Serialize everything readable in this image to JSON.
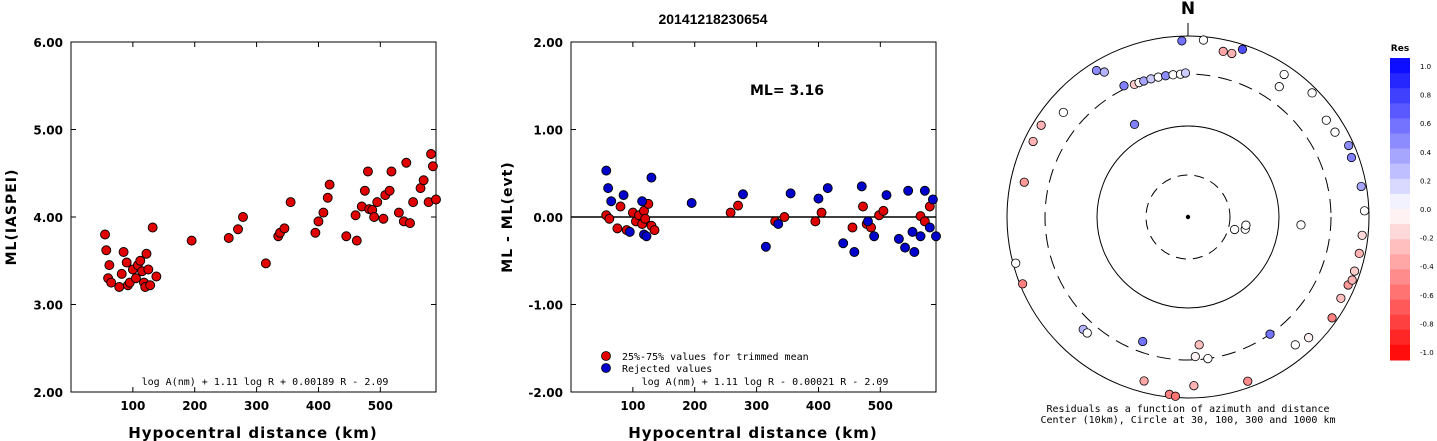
{
  "title": "20141218230654",
  "chart_data": [
    {
      "type": "scatter",
      "ylabel": "ML(IASPEI)",
      "xlabel": "Hypocentral distance (km)",
      "xlim": [
        0,
        590
      ],
      "ylim": [
        2.0,
        6.0
      ],
      "x_ticks": [
        "100",
        "200",
        "300",
        "400",
        "500"
      ],
      "y_ticks": [
        "2.00",
        "3.00",
        "4.00",
        "5.00",
        "6.00"
      ],
      "formula": "log A(nm) + 1.11 log R + 0.00189 R - 2.09",
      "points": [
        [
          55,
          3.8
        ],
        [
          57,
          3.62
        ],
        [
          60,
          3.3
        ],
        [
          62,
          3.45
        ],
        [
          65,
          3.25
        ],
        [
          78,
          3.2
        ],
        [
          82,
          3.35
        ],
        [
          85,
          3.6
        ],
        [
          90,
          3.48
        ],
        [
          92,
          3.22
        ],
        [
          95,
          3.25
        ],
        [
          100,
          3.4
        ],
        [
          105,
          3.3
        ],
        [
          108,
          3.45
        ],
        [
          112,
          3.5
        ],
        [
          115,
          3.38
        ],
        [
          118,
          3.25
        ],
        [
          120,
          3.2
        ],
        [
          122,
          3.58
        ],
        [
          125,
          3.4
        ],
        [
          128,
          3.22
        ],
        [
          132,
          3.88
        ],
        [
          138,
          3.32
        ],
        [
          195,
          3.73
        ],
        [
          255,
          3.76
        ],
        [
          270,
          3.86
        ],
        [
          278,
          4.0
        ],
        [
          315,
          3.47
        ],
        [
          335,
          3.78
        ],
        [
          338,
          3.82
        ],
        [
          345,
          3.87
        ],
        [
          355,
          4.17
        ],
        [
          395,
          3.82
        ],
        [
          400,
          3.95
        ],
        [
          408,
          4.05
        ],
        [
          415,
          4.22
        ],
        [
          418,
          4.37
        ],
        [
          445,
          3.78
        ],
        [
          460,
          4.02
        ],
        [
          462,
          3.73
        ],
        [
          470,
          4.12
        ],
        [
          475,
          4.3
        ],
        [
          480,
          4.52
        ],
        [
          482,
          4.09
        ],
        [
          487,
          4.08
        ],
        [
          490,
          4.0
        ],
        [
          495,
          4.17
        ],
        [
          505,
          3.98
        ],
        [
          508,
          4.25
        ],
        [
          515,
          4.3
        ],
        [
          518,
          4.52
        ],
        [
          530,
          4.05
        ],
        [
          538,
          3.95
        ],
        [
          542,
          4.62
        ],
        [
          548,
          3.93
        ],
        [
          553,
          4.17
        ],
        [
          565,
          4.33
        ],
        [
          570,
          4.42
        ],
        [
          578,
          4.17
        ],
        [
          582,
          4.72
        ],
        [
          585,
          4.58
        ],
        [
          590,
          4.2
        ]
      ]
    },
    {
      "type": "scatter",
      "ylabel": "ML - ML(evt)",
      "xlabel": "Hypocentral distance (km)",
      "xlim": [
        0,
        590
      ],
      "ylim": [
        -2.0,
        2.0
      ],
      "x_ticks": [
        "100",
        "200",
        "300",
        "400",
        "500"
      ],
      "y_ticks": [
        "-2.00",
        "-1.00",
        "0.00",
        "1.00",
        "2.00"
      ],
      "annotation": "ML= 3.16",
      "formula": "log A(nm) + 1.11 log R - 0.00021 R - 2.09",
      "legend": [
        "25%-75% values for trimmed mean",
        "Rejected values"
      ],
      "series": [
        {
          "name": "25%-75% values for trimmed mean",
          "color": "#e00000",
          "points": [
            [
              57,
              0.02
            ],
            [
              62,
              -0.02
            ],
            [
              75,
              -0.13
            ],
            [
              80,
              0.12
            ],
            [
              90,
              -0.15
            ],
            [
              100,
              0.05
            ],
            [
              105,
              -0.05
            ],
            [
              110,
              0.02
            ],
            [
              115,
              -0.08
            ],
            [
              118,
              0.07
            ],
            [
              120,
              -0.02
            ],
            [
              125,
              0.15
            ],
            [
              130,
              -0.1
            ],
            [
              135,
              -0.15
            ],
            [
              258,
              0.05
            ],
            [
              270,
              0.13
            ],
            [
              330,
              -0.05
            ],
            [
              345,
              0.0
            ],
            [
              395,
              -0.05
            ],
            [
              405,
              0.05
            ],
            [
              455,
              -0.12
            ],
            [
              472,
              0.12
            ],
            [
              478,
              -0.08
            ],
            [
              485,
              -0.12
            ],
            [
              498,
              0.02
            ],
            [
              505,
              0.07
            ],
            [
              565,
              0.01
            ],
            [
              572,
              -0.05
            ],
            [
              580,
              0.12
            ]
          ]
        },
        {
          "name": "Rejected values",
          "color": "#0000cc",
          "points": [
            [
              57,
              0.53
            ],
            [
              60,
              0.33
            ],
            [
              65,
              0.18
            ],
            [
              85,
              0.25
            ],
            [
              95,
              -0.17
            ],
            [
              115,
              0.18
            ],
            [
              118,
              -0.2
            ],
            [
              122,
              -0.22
            ],
            [
              130,
              0.45
            ],
            [
              195,
              0.16
            ],
            [
              278,
              0.26
            ],
            [
              315,
              -0.34
            ],
            [
              335,
              -0.08
            ],
            [
              355,
              0.27
            ],
            [
              400,
              0.21
            ],
            [
              415,
              0.33
            ],
            [
              440,
              -0.3
            ],
            [
              458,
              -0.4
            ],
            [
              470,
              0.35
            ],
            [
              480,
              -0.05
            ],
            [
              490,
              -0.22
            ],
            [
              510,
              0.25
            ],
            [
              530,
              -0.25
            ],
            [
              540,
              -0.35
            ],
            [
              545,
              0.3
            ],
            [
              552,
              -0.17
            ],
            [
              555,
              -0.4
            ],
            [
              565,
              -0.22
            ],
            [
              572,
              0.3
            ],
            [
              580,
              -0.12
            ],
            [
              585,
              0.2
            ],
            [
              590,
              -0.22
            ]
          ]
        }
      ]
    },
    {
      "type": "scatter",
      "subtype": "polar residual map",
      "north_label": "N",
      "caption_line1": "Residuals as a function of azimuth and distance",
      "caption_line2": "Center (10km), Circle at 30, 100, 300 and 1000 km",
      "colorbar": {
        "title": "Res",
        "ticks": [
          "1.0",
          "0.8",
          "0.6",
          "0.4",
          "0.2",
          "0.0",
          "-0.2",
          "-0.4",
          "-0.6",
          "-0.8",
          "-1.0"
        ]
      },
      "points": [
        {
          "az": 5,
          "dist": 900,
          "res": 0.0
        },
        {
          "az": -2,
          "dist": 860,
          "res": 0.55
        },
        {
          "az": 18,
          "dist": 860,
          "res": 0.7
        },
        {
          "az": 12,
          "dist": 690,
          "res": -0.35
        },
        {
          "az": 15,
          "dist": 690,
          "res": -0.3
        },
        {
          "az": -32,
          "dist": 770,
          "res": 0.45
        },
        {
          "az": -30,
          "dist": 650,
          "res": 0.3
        },
        {
          "az": 34,
          "dist": 750,
          "res": 0.0
        },
        {
          "az": -26,
          "dist": 330,
          "res": 0.5
        },
        {
          "az": -22,
          "dist": 300,
          "res": -0.2
        },
        {
          "az": -20,
          "dist": 300,
          "res": 0.0
        },
        {
          "az": -18,
          "dist": 300,
          "res": 0.35
        },
        {
          "az": -15,
          "dist": 300,
          "res": 0.2
        },
        {
          "az": -12,
          "dist": 300,
          "res": 0.0
        },
        {
          "az": -9,
          "dist": 300,
          "res": 0.45
        },
        {
          "az": -6,
          "dist": 300,
          "res": 0.0
        },
        {
          "az": -3,
          "dist": 300,
          "res": 0.0
        },
        {
          "az": -1,
          "dist": 310,
          "res": 0.2
        },
        {
          "az": -30,
          "dist": 140,
          "res": 0.5
        },
        {
          "az": -64,
          "dist": 760,
          "res": -0.3
        },
        {
          "az": -78,
          "dist": 650,
          "res": -0.4
        },
        {
          "az": -105,
          "dist": 920,
          "res": 0.0
        },
        {
          "az": -112,
          "dist": 920,
          "res": -0.5
        },
        {
          "az": -137,
          "dist": 420,
          "res": 0.3
        },
        {
          "az": -139,
          "dist": 420,
          "res": 0.0
        },
        {
          "az": -160,
          "dist": 240,
          "res": 0.55
        },
        {
          "az": -165,
          "dist": 700,
          "res": -0.35
        },
        {
          "az": -174,
          "dist": 920,
          "res": -0.5
        },
        {
          "az": -176,
          "dist": 960,
          "res": -0.55
        },
        {
          "az": 178,
          "dist": 680,
          "res": -0.3
        },
        {
          "az": 177,
          "dist": 280,
          "res": -0.05
        },
        {
          "az": 175,
          "dist": 220,
          "res": -0.25
        },
        {
          "az": 172,
          "dist": 300,
          "res": 0.0
        },
        {
          "az": 160,
          "dist": 820,
          "res": -0.45
        },
        {
          "az": 145,
          "dist": 300,
          "res": 0.55
        },
        {
          "az": 140,
          "dist": 640,
          "res": 0.0
        },
        {
          "az": 135,
          "dist": 720,
          "res": -0.05
        },
        {
          "az": 125,
          "dist": 850,
          "res": -0.5
        },
        {
          "az": 105,
          "dist": 35,
          "res": 0.0
        },
        {
          "az": 102,
          "dist": 45,
          "res": 0.0
        },
        {
          "az": 98,
          "dist": 45,
          "res": 0.0
        },
        {
          "az": 94,
          "dist": 160,
          "res": 0.0
        },
        {
          "az": 118,
          "dist": 780,
          "res": -0.25
        },
        {
          "az": 113,
          "dist": 800,
          "res": -0.4
        },
        {
          "az": 111,
          "dist": 850,
          "res": -0.3
        },
        {
          "az": 108,
          "dist": 830,
          "res": -0.2
        },
        {
          "az": 102,
          "dist": 830,
          "res": -0.3
        },
        {
          "az": 96,
          "dist": 830,
          "res": -0.15
        },
        {
          "az": 88,
          "dist": 870,
          "res": 0.0
        },
        {
          "az": 80,
          "dist": 850,
          "res": 0.35
        },
        {
          "az": 70,
          "dist": 800,
          "res": 0.5
        },
        {
          "az": 66,
          "dist": 850,
          "res": 0.45
        },
        {
          "az": 60,
          "dist": 700,
          "res": 0.0
        },
        {
          "az": 55,
          "dist": 680,
          "res": 0.0
        },
        {
          "az": 45,
          "dist": 840,
          "res": 0.0
        },
        {
          "az": 35,
          "dist": 500,
          "res": 0.0
        },
        {
          "az": -58,
          "dist": 780,
          "res": -0.3
        },
        {
          "az": -50,
          "dist": 560,
          "res": 0.0
        }
      ]
    }
  ]
}
